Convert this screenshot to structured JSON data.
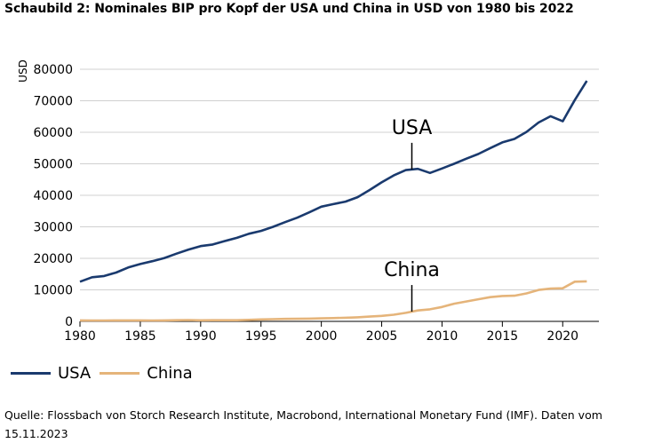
{
  "title": "Schaubild 2: Nominales BIP pro Kopf der USA und China in USD von 1980 bis 2022",
  "source": "Quelle: Flossbach von Storch Research Institute, Macrobond, International Monetary Fund (IMF). Daten vom 15.11.2023",
  "chart_data": {
    "type": "line",
    "title": "Schaubild 2: Nominales BIP pro Kopf der USA und China in USD von 1980 bis 2022",
    "xlabel": "",
    "ylabel": "USD",
    "xlim": [
      1980,
      2023
    ],
    "ylim": [
      0,
      80000
    ],
    "xticks": [
      1980,
      1985,
      1990,
      1995,
      2000,
      2005,
      2010,
      2015,
      2020
    ],
    "yticks": [
      0,
      10000,
      20000,
      30000,
      40000,
      50000,
      60000,
      70000,
      80000
    ],
    "grid": true,
    "legend_position": "bottom-left",
    "x": [
      1980,
      1981,
      1982,
      1983,
      1984,
      1985,
      1986,
      1987,
      1988,
      1989,
      1990,
      1991,
      1992,
      1993,
      1994,
      1995,
      1996,
      1997,
      1998,
      1999,
      2000,
      2001,
      2002,
      2003,
      2004,
      2005,
      2006,
      2007,
      2008,
      2009,
      2010,
      2011,
      2012,
      2013,
      2014,
      2015,
      2016,
      2017,
      2018,
      2019,
      2020,
      2021,
      2022
    ],
    "series": [
      {
        "name": "USA",
        "color": "#1a3a6e",
        "values": [
          12600,
          14000,
          14400,
          15500,
          17100,
          18200,
          19100,
          20100,
          21500,
          22800,
          23900,
          24400,
          25500,
          26500,
          27800,
          28700,
          30000,
          31500,
          32900,
          34600,
          36400,
          37200,
          38000,
          39400,
          41700,
          44100,
          46300,
          48000,
          48400,
          47100,
          48500,
          50000,
          51600,
          53100,
          55000,
          56800,
          57900,
          60100,
          63100,
          65100,
          63500,
          70200,
          76300
        ]
      },
      {
        "name": "China",
        "color": "#e5b47a",
        "values": [
          300,
          290,
          280,
          300,
          310,
          300,
          280,
          300,
          370,
          410,
          350,
          360,
          370,
          380,
          470,
          610,
          700,
          780,
          830,
          870,
          960,
          1050,
          1150,
          1290,
          1510,
          1750,
          2100,
          2700,
          3470,
          3830,
          4550,
          5600,
          6300,
          7000,
          7680,
          8070,
          8150,
          8880,
          9980,
          10400,
          10500,
          12600,
          12700
        ]
      }
    ],
    "annotations": [
      {
        "text": "USA",
        "x": 2007.5
      },
      {
        "text": "China",
        "x": 2007.5
      }
    ]
  }
}
